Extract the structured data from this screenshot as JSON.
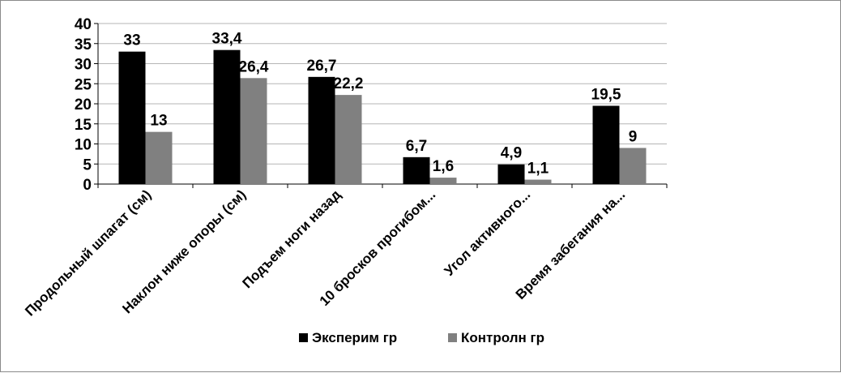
{
  "chart_data": {
    "type": "bar",
    "categories": [
      "Продольный шпагат (см)",
      "Наклон ниже опоры (см)",
      "Подъем ноги назад",
      "10 бросков прогибом...",
      "Угол активного...",
      "Время забегания на..."
    ],
    "series": [
      {
        "name": "Эксперим гр",
        "color": "#000000",
        "values": [
          33,
          33.4,
          26.7,
          6.7,
          4.9,
          19.5
        ],
        "labels": [
          "33",
          "33,4",
          "26,7",
          "6,7",
          "4,9",
          "19,5"
        ]
      },
      {
        "name": "Контролн гр",
        "color": "#808080",
        "values": [
          13,
          26.4,
          22.2,
          1.6,
          1.1,
          9
        ],
        "labels": [
          "13",
          "26,4",
          "22,2",
          "1,6",
          "1,1",
          "9"
        ]
      }
    ],
    "yticks": [
      0,
      5,
      10,
      15,
      20,
      25,
      30,
      35,
      40
    ],
    "ylim": [
      0,
      40
    ],
    "grid": true,
    "legend": "bottom"
  }
}
